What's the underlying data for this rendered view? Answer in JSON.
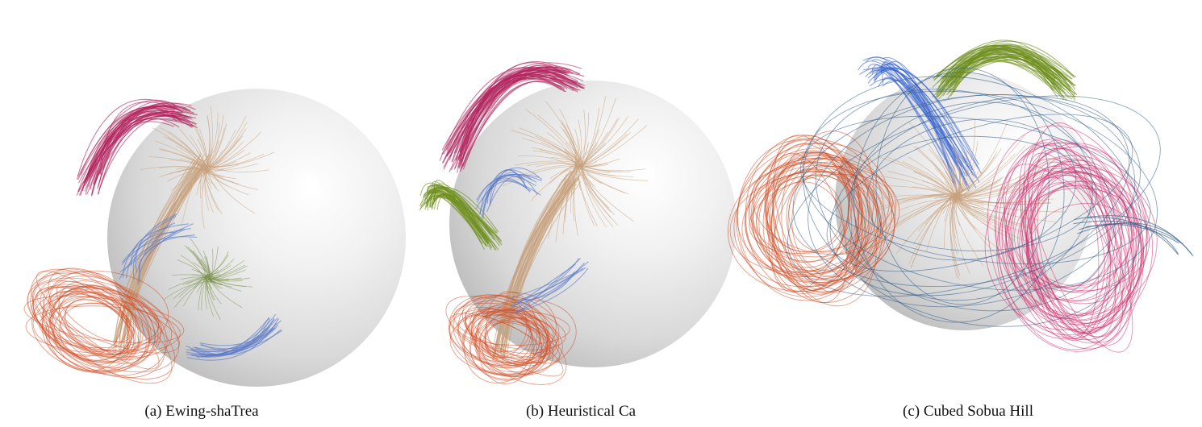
{
  "figure": {
    "panels": [
      {
        "caption": "(a) Ewing-shaTrea",
        "sphere_color": "#e6e6e6",
        "bundles": [
          {
            "name": "magenta",
            "color": "#b0245e"
          },
          {
            "name": "tan",
            "color": "#c7a07c"
          },
          {
            "name": "green",
            "color": "#7a8f4a"
          },
          {
            "name": "orange",
            "color": "#d2502a"
          },
          {
            "name": "blue",
            "color": "#5a78c8"
          }
        ]
      },
      {
        "caption": "(b) Heuristical Ca",
        "sphere_color": "#e6e6e6",
        "bundles": [
          {
            "name": "magenta",
            "color": "#b0245e"
          },
          {
            "name": "green",
            "color": "#6f8f1e"
          },
          {
            "name": "tan",
            "color": "#c7a07c"
          },
          {
            "name": "orange",
            "color": "#d2502a"
          },
          {
            "name": "blue",
            "color": "#5a78c8"
          }
        ]
      },
      {
        "caption": "(c) Cubed Sobua Hill",
        "sphere_color": "#e6e6e6",
        "bundles": [
          {
            "name": "green",
            "color": "#6f8f1e"
          },
          {
            "name": "blue",
            "color": "#3a66d0"
          },
          {
            "name": "orange",
            "color": "#cf4a22"
          },
          {
            "name": "tan",
            "color": "#c7a07c"
          },
          {
            "name": "magenta",
            "color": "#d0306e"
          },
          {
            "name": "steel-blue",
            "color": "#2e5a86"
          }
        ]
      }
    ]
  }
}
